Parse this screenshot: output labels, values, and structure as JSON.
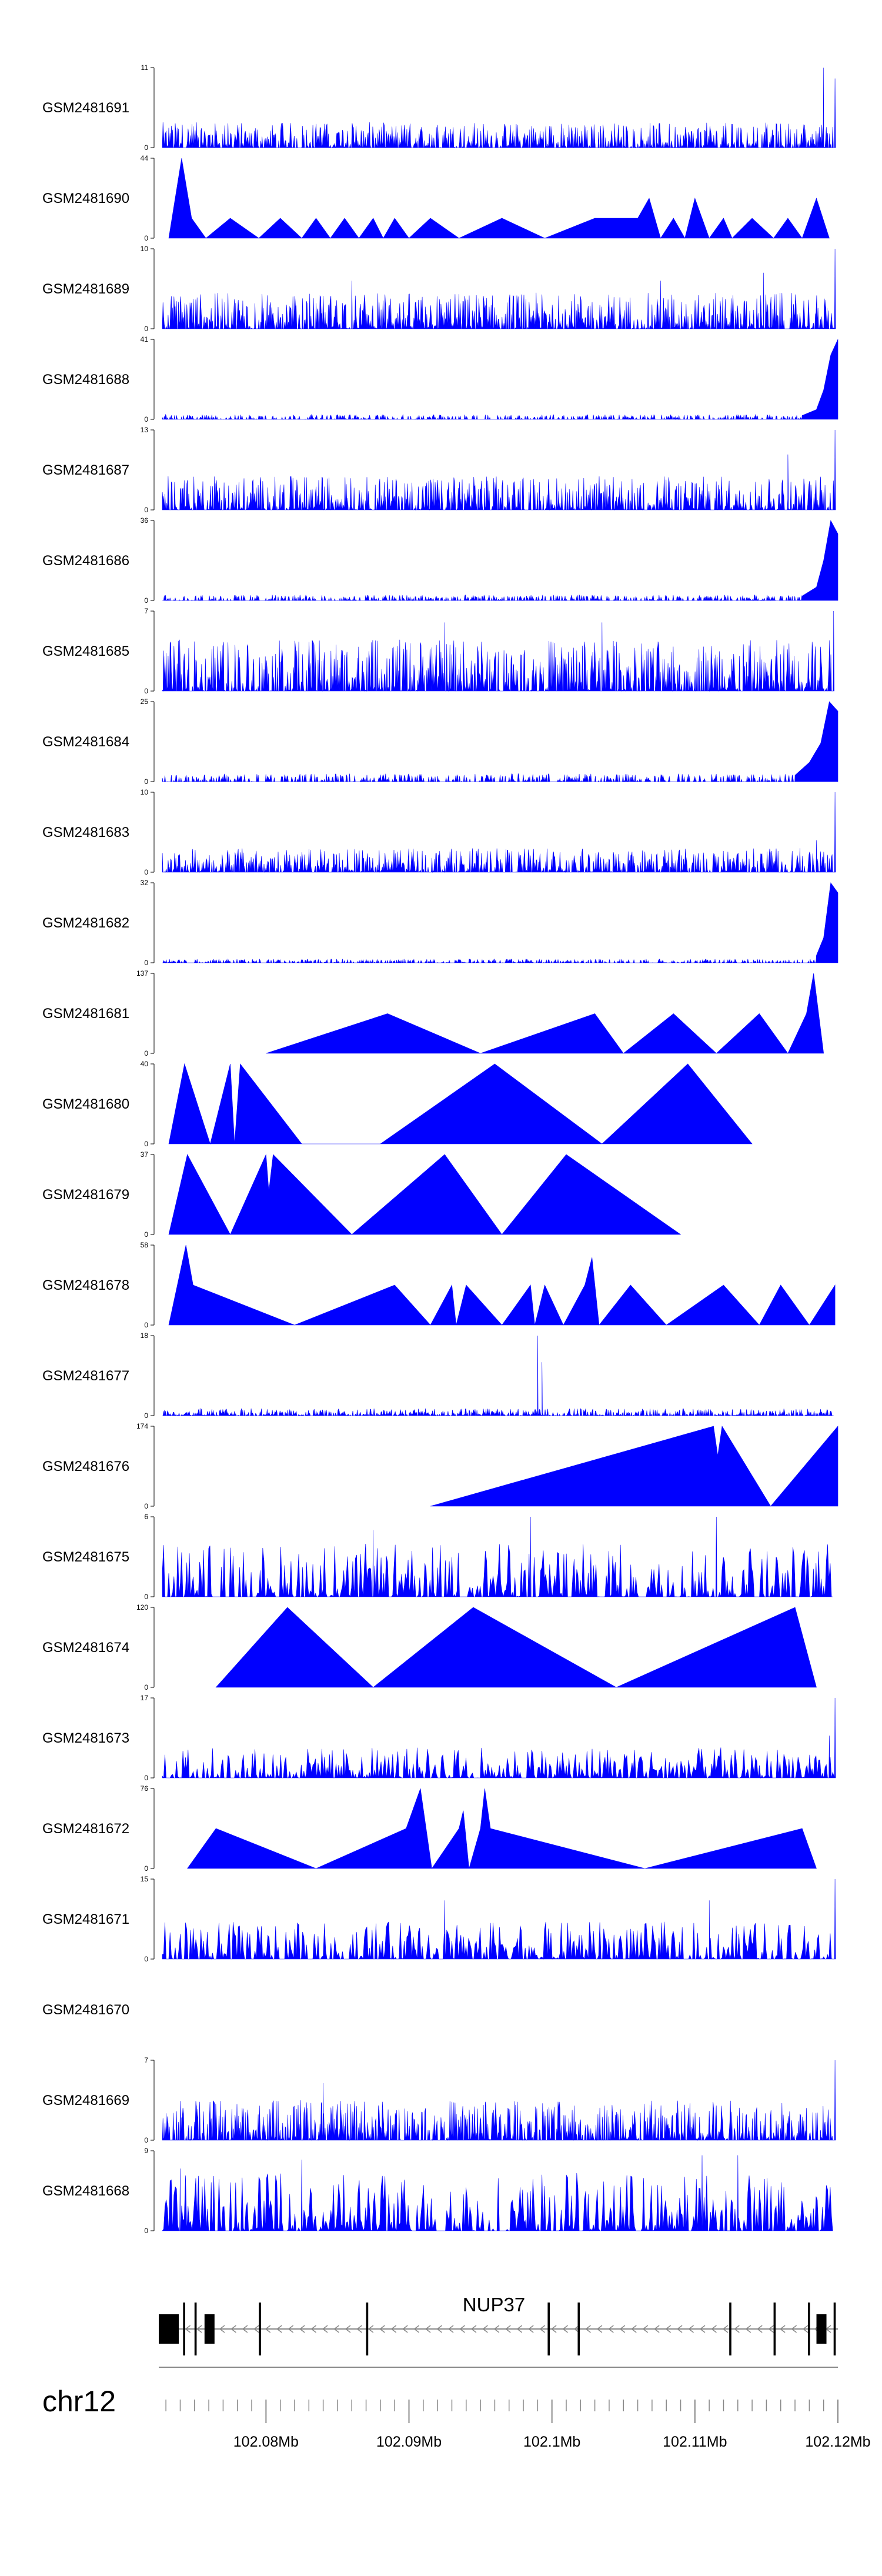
{
  "chart_data": {
    "type": "area",
    "series_color": "#0000ff",
    "xlim": [
      102072500,
      102120000
    ],
    "tracks": [
      {
        "name": "GSM2481691",
        "ymax": 11,
        "ymin": 0,
        "style": "dense",
        "scale": 3.5,
        "peaks": [
          [
            102119000,
            11
          ],
          [
            102119800,
            9.5
          ]
        ]
      },
      {
        "name": "GSM2481690",
        "ymax": 44,
        "ymin": 0,
        "style": "sparse",
        "points": [
          [
            102073200,
            0
          ],
          [
            102074100,
            44
          ],
          [
            102074800,
            11
          ],
          [
            102075800,
            0
          ],
          [
            102077500,
            11
          ],
          [
            102079500,
            0
          ],
          [
            102081000,
            11
          ],
          [
            102082500,
            0
          ],
          [
            102083500,
            11
          ],
          [
            102084500,
            0
          ],
          [
            102085500,
            11
          ],
          [
            102086500,
            0
          ],
          [
            102087500,
            11
          ],
          [
            102088200,
            0
          ],
          [
            102089000,
            11
          ],
          [
            102090000,
            0
          ],
          [
            102091500,
            11
          ],
          [
            102093500,
            0
          ],
          [
            102096500,
            11
          ],
          [
            102099500,
            0
          ],
          [
            102103000,
            11
          ],
          [
            102106000,
            11
          ],
          [
            102106800,
            22
          ],
          [
            102107600,
            0
          ],
          [
            102108500,
            11
          ],
          [
            102109300,
            0
          ],
          [
            102110000,
            22
          ],
          [
            102111000,
            0
          ],
          [
            102112000,
            11
          ],
          [
            102112600,
            0
          ],
          [
            102114000,
            11
          ],
          [
            102115500,
            0
          ],
          [
            102116500,
            11
          ],
          [
            102117500,
            0
          ],
          [
            102118500,
            22
          ],
          [
            102119400,
            0
          ]
        ]
      },
      {
        "name": "GSM2481689",
        "ymax": 10,
        "ymin": 0,
        "style": "dense",
        "scale": 4.5,
        "peaks": [
          [
            102119800,
            10
          ],
          [
            102114800,
            7
          ],
          [
            102107600,
            6
          ],
          [
            102086000,
            6
          ]
        ]
      },
      {
        "name": "GSM2481688",
        "ymax": 41,
        "ymin": 0,
        "style": "tail",
        "scale": 2.5,
        "tail": [
          [
            102117500,
            2
          ],
          [
            102118500,
            5
          ],
          [
            102119000,
            15
          ],
          [
            102119500,
            33
          ],
          [
            102120000,
            41
          ]
        ]
      },
      {
        "name": "GSM2481687",
        "ymax": 13,
        "ymin": 0,
        "style": "dense",
        "scale": 5.5,
        "peaks": [
          [
            102119800,
            13
          ],
          [
            102116500,
            9
          ]
        ]
      },
      {
        "name": "GSM2481686",
        "ymax": 36,
        "ymin": 0,
        "style": "tail",
        "scale": 2.5,
        "tail": [
          [
            102117500,
            2
          ],
          [
            102118500,
            6
          ],
          [
            102119000,
            18
          ],
          [
            102119500,
            36
          ],
          [
            102120000,
            30
          ]
        ]
      },
      {
        "name": "GSM2481685",
        "ymax": 7,
        "ymin": 0,
        "style": "dense",
        "scale": 4.5,
        "peaks": [
          [
            102119700,
            7
          ],
          [
            102092500,
            6
          ],
          [
            102103500,
            6
          ]
        ]
      },
      {
        "name": "GSM2481684",
        "ymax": 25,
        "ymin": 0,
        "style": "tail",
        "scale": 2.5,
        "tail": [
          [
            102117000,
            2
          ],
          [
            102118000,
            6
          ],
          [
            102118800,
            12
          ],
          [
            102119400,
            25
          ],
          [
            102120000,
            22
          ]
        ]
      },
      {
        "name": "GSM2481683",
        "ymax": 10,
        "ymin": 0,
        "style": "dense",
        "scale": 3.0,
        "peaks": [
          [
            102119800,
            10
          ],
          [
            102118500,
            4
          ]
        ]
      },
      {
        "name": "GSM2481682",
        "ymax": 32,
        "ymin": 0,
        "style": "tail",
        "scale": 1.5,
        "tail": [
          [
            102118500,
            3
          ],
          [
            102119000,
            10
          ],
          [
            102119500,
            32
          ],
          [
            102120000,
            28
          ]
        ]
      },
      {
        "name": "GSM2481681",
        "ymax": 137,
        "ymin": 0,
        "style": "sparse",
        "points": [
          [
            102080000,
            0
          ],
          [
            102088500,
            68
          ],
          [
            102095000,
            0
          ],
          [
            102103000,
            68
          ],
          [
            102105000,
            0
          ],
          [
            102108500,
            68
          ],
          [
            102111500,
            0
          ],
          [
            102114500,
            68
          ],
          [
            102116500,
            0
          ],
          [
            102117800,
            68
          ],
          [
            102118300,
            137
          ],
          [
            102119000,
            0
          ]
        ]
      },
      {
        "name": "GSM2481680",
        "ymax": 40,
        "ymin": 0,
        "style": "sparse",
        "points": [
          [
            102073200,
            0
          ],
          [
            102074300,
            40
          ],
          [
            102076100,
            0
          ],
          [
            102077500,
            40
          ],
          [
            102077800,
            0
          ],
          [
            102078200,
            40
          ],
          [
            102082500,
            0
          ],
          [
            102088000,
            0
          ],
          [
            102096000,
            40
          ],
          [
            102103500,
            0
          ],
          [
            102109500,
            40
          ],
          [
            102114000,
            0
          ]
        ]
      },
      {
        "name": "GSM2481679",
        "ymax": 37,
        "ymin": 0,
        "style": "sparse",
        "points": [
          [
            102073200,
            0
          ],
          [
            102074500,
            37
          ],
          [
            102077500,
            0
          ],
          [
            102080000,
            37
          ],
          [
            102080200,
            20
          ],
          [
            102080500,
            37
          ],
          [
            102086000,
            0
          ],
          [
            102092500,
            37
          ],
          [
            102096500,
            0
          ],
          [
            102101000,
            37
          ],
          [
            102109000,
            0
          ]
        ]
      },
      {
        "name": "GSM2481678",
        "ymax": 58,
        "ymin": 0,
        "style": "sparse",
        "points": [
          [
            102073200,
            0
          ],
          [
            102074400,
            58
          ],
          [
            102074900,
            29
          ],
          [
            102082000,
            0
          ],
          [
            102089000,
            29
          ],
          [
            102091500,
            0
          ],
          [
            102093000,
            29
          ],
          [
            102093300,
            0
          ],
          [
            102094000,
            29
          ],
          [
            102096500,
            0
          ],
          [
            102098500,
            29
          ],
          [
            102098800,
            0
          ],
          [
            102099500,
            29
          ],
          [
            102100800,
            0
          ],
          [
            102102300,
            29
          ],
          [
            102102800,
            49
          ],
          [
            102103300,
            0
          ],
          [
            102105500,
            29
          ],
          [
            102108000,
            0
          ],
          [
            102112000,
            29
          ],
          [
            102114500,
            0
          ],
          [
            102116000,
            29
          ],
          [
            102118000,
            0
          ],
          [
            102119800,
            29
          ]
        ]
      },
      {
        "name": "GSM2481677",
        "ymax": 18,
        "ymin": 0,
        "style": "dense",
        "scale": 1.6,
        "peaks": [
          [
            102099000,
            18
          ],
          [
            102099300,
            12
          ]
        ]
      },
      {
        "name": "GSM2481676",
        "ymax": 174,
        "ymin": 0,
        "style": "sparse",
        "points": [
          [
            102091500,
            0
          ],
          [
            102111300,
            174
          ],
          [
            102111600,
            110
          ],
          [
            102111900,
            174
          ],
          [
            102115300,
            0
          ],
          [
            102120000,
            174
          ]
        ]
      },
      {
        "name": "GSM2481675",
        "ymax": 6,
        "ymin": 0,
        "style": "dense-spiky",
        "scale": 4,
        "peaks": [
          [
            102098500,
            6
          ],
          [
            102111500,
            6
          ],
          [
            102087500,
            5
          ]
        ]
      },
      {
        "name": "GSM2481674",
        "ymax": 120,
        "ymin": 0,
        "style": "sparse",
        "points": [
          [
            102076500,
            0
          ],
          [
            102081500,
            120
          ],
          [
            102087500,
            0
          ],
          [
            102094500,
            120
          ],
          [
            102104500,
            0
          ],
          [
            102117000,
            120
          ],
          [
            102118500,
            0
          ]
        ]
      },
      {
        "name": "GSM2481673",
        "ymax": 17,
        "ymin": 0,
        "style": "dense-spiky",
        "scale": 6.5,
        "peaks": [
          [
            102119800,
            17
          ],
          [
            102119400,
            9
          ]
        ]
      },
      {
        "name": "GSM2481672",
        "ymax": 76,
        "ymin": 0,
        "style": "sparse",
        "points": [
          [
            102074500,
            0
          ],
          [
            102076500,
            38
          ],
          [
            102083500,
            0
          ],
          [
            102089800,
            38
          ],
          [
            102090800,
            76
          ],
          [
            102091600,
            0
          ],
          [
            102093500,
            38
          ],
          [
            102093800,
            55
          ],
          [
            102094200,
            0
          ],
          [
            102095000,
            38
          ],
          [
            102095300,
            76
          ],
          [
            102095700,
            38
          ],
          [
            102106500,
            0
          ],
          [
            102117500,
            38
          ],
          [
            102118500,
            0
          ]
        ]
      },
      {
        "name": "GSM2481671",
        "ymax": 15,
        "ymin": 0,
        "style": "dense-spiky",
        "scale": 7,
        "peaks": [
          [
            102119800,
            15
          ],
          [
            102111000,
            11
          ],
          [
            102092500,
            11
          ]
        ]
      },
      {
        "name": "GSM2481670",
        "ymax": null,
        "ymin": null,
        "style": "empty"
      },
      {
        "name": "GSM2481669",
        "ymax": 7,
        "ymin": 0,
        "style": "dense",
        "scale": 3.5,
        "peaks": [
          [
            102119800,
            7
          ],
          [
            102084000,
            5
          ]
        ]
      },
      {
        "name": "GSM2481668",
        "ymax": 9,
        "ymin": 0,
        "style": "dense-spiky",
        "scale": 6.5,
        "peaks": [
          [
            102110500,
            8.5
          ],
          [
            102113000,
            8.5
          ],
          [
            102082500,
            8
          ],
          [
            102074000,
            7
          ]
        ]
      }
    ],
    "gene": {
      "name": "NUP37",
      "strand": "-",
      "exons": [
        [
          102072500,
          102073900,
          "thick"
        ],
        [
          102074200,
          102074350,
          "thin"
        ],
        [
          102075000,
          102075150,
          "thin"
        ],
        [
          102075700,
          102076400,
          "thick"
        ],
        [
          102079500,
          102079650,
          "thin"
        ],
        [
          102087000,
          102087150,
          "thin"
        ],
        [
          102099700,
          102099850,
          "thin"
        ],
        [
          102101800,
          102101950,
          "thin"
        ],
        [
          102112400,
          102112550,
          "thin"
        ],
        [
          102115500,
          102115650,
          "thin"
        ],
        [
          102117900,
          102118050,
          "thin"
        ],
        [
          102118500,
          102119200,
          "thick"
        ],
        [
          102119700,
          102119850,
          "thin"
        ]
      ]
    },
    "chromosome": "chr12",
    "axis": {
      "major_ticks": [
        102080000,
        102090000,
        102100000,
        102110000,
        102120000
      ],
      "tick_labels": [
        "102.08Mb",
        "102.09Mb",
        "102.1Mb",
        "102.11Mb",
        "102.12Mb"
      ],
      "minor_step": 1000
    }
  }
}
